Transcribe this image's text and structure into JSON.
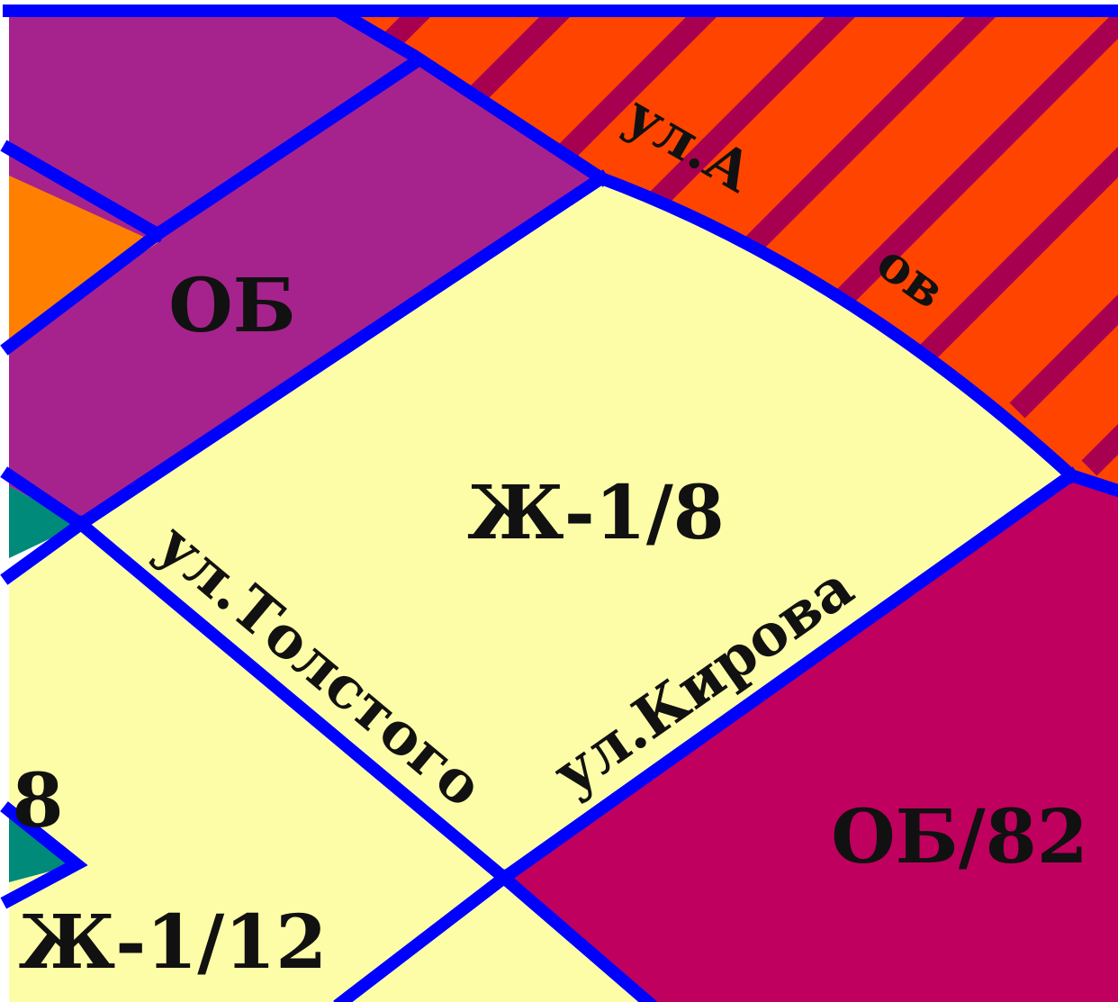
{
  "map": {
    "colors": {
      "residential": "#fdfda8",
      "public_business": "#a6238e",
      "public_business_82": "#c0005e",
      "industrial_orange": "#ff8000",
      "hatched_zone": "#ff4400",
      "hatch_stripe": "#a80050",
      "green_zone": "#008a7a",
      "street_lines": "#0000ff",
      "background": "#ffffff"
    },
    "zones": {
      "ob": "ОБ",
      "zh_1_8": "Ж-1/8",
      "ob_82": "ОБ/82",
      "zh_1_12": "Ж-1/12",
      "partial_8": "8"
    },
    "streets": {
      "tolstogo": "ул.Толстого",
      "kirova": "ул.Кирова",
      "partial_top": "ул.А",
      "partial_top_end": "ов"
    }
  }
}
